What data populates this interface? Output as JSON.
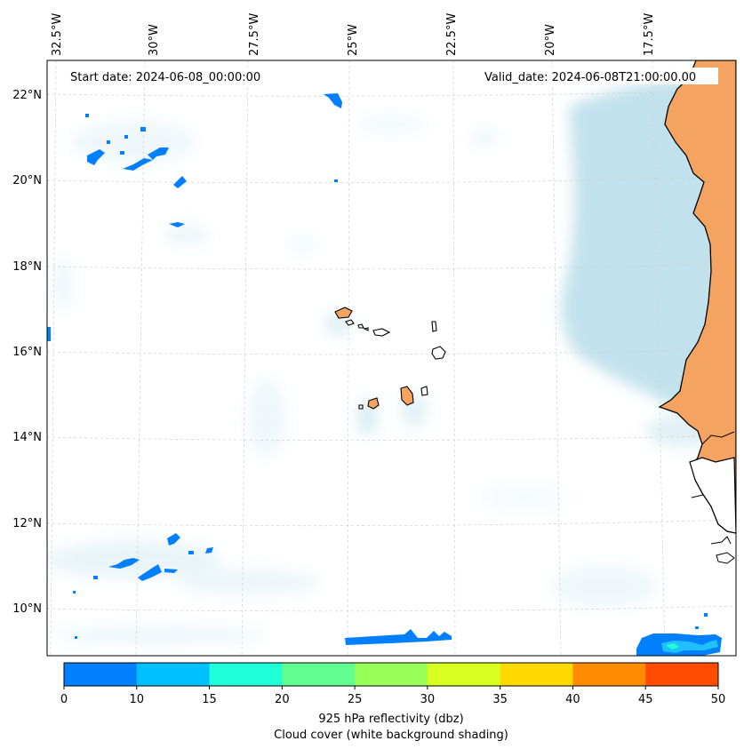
{
  "header": {
    "start_date": "Start date: 2024-06-08_00:00:00",
    "valid_date": "Valid_date: 2024-06-08T21:00:00.00"
  },
  "axes": {
    "lon_labels": [
      "32.5°W",
      "30°W",
      "27.5°W",
      "25°W",
      "22.5°W",
      "20°W",
      "17.5°W"
    ],
    "lat_labels": [
      "22°N",
      "20°N",
      "18°N",
      "16°N",
      "14°N",
      "12°N",
      "10°N"
    ]
  },
  "colorbar": {
    "ticks": [
      "0",
      "10",
      "15",
      "20",
      "25",
      "30",
      "35",
      "40",
      "45",
      "50"
    ],
    "colors": [
      "#0080ff",
      "#00c0ff",
      "#20ffd8",
      "#60ff90",
      "#98ff58",
      "#d8ff20",
      "#ffd800",
      "#ff8c00",
      "#ff4c00"
    ],
    "label_line1": "925 hPa reflectivity (dbz)",
    "label_line2": "Cloud cover (white background shading)"
  },
  "colors": {
    "land": "#f4a460",
    "cloud": "#add8e6",
    "echo": "#0080ff",
    "echo_light": "#20c0ff"
  }
}
